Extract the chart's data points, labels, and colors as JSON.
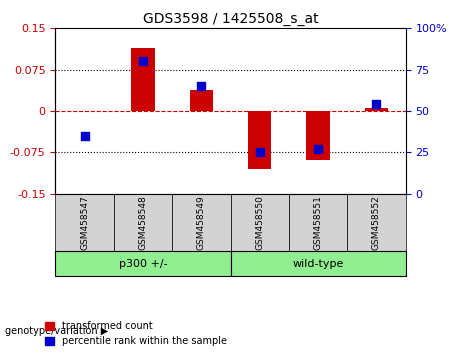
{
  "title": "GDS3598 / 1425508_s_at",
  "samples": [
    "GSM458547",
    "GSM458548",
    "GSM458549",
    "GSM458550",
    "GSM458551",
    "GSM458552"
  ],
  "transformed_count": [
    0.0,
    0.115,
    0.038,
    -0.105,
    -0.09,
    0.005
  ],
  "percentile_rank_raw": [
    35,
    80,
    65,
    25,
    27,
    54
  ],
  "groups": [
    {
      "label": "p300 +/-",
      "indices": [
        0,
        1,
        2
      ],
      "color": "#90EE90"
    },
    {
      "label": "wild-type",
      "indices": [
        3,
        4,
        5
      ],
      "color": "#90EE90"
    }
  ],
  "bar_color": "#CC0000",
  "dot_color": "#0000CC",
  "ylim_left": [
    -0.15,
    0.15
  ],
  "ylim_right": [
    0,
    100
  ],
  "yticks_left": [
    -0.15,
    -0.075,
    0,
    0.075,
    0.15
  ],
  "yticks_right": [
    0,
    25,
    50,
    75,
    100
  ],
  "ytick_labels_right": [
    "0",
    "25",
    "50",
    "75",
    "100%"
  ],
  "hline_y": 0,
  "dotted_lines": [
    -0.075,
    0.075
  ],
  "legend_items": [
    "transformed count",
    "percentile rank within the sample"
  ],
  "group_label_prefix": "genotype/variation",
  "bar_width": 0.4,
  "dot_size": 40
}
